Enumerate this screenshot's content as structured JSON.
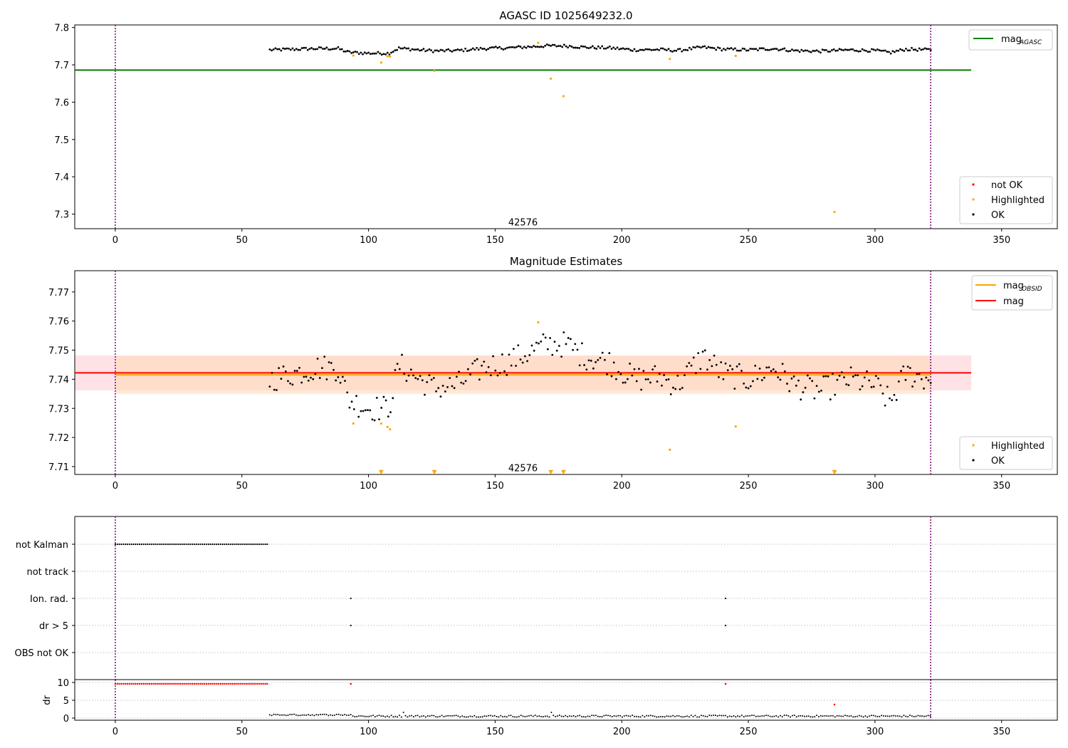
{
  "colors": {
    "ok": "#000000",
    "highlighted": "#ffa500",
    "not_ok": "#ff0000",
    "agasc_line": "#008000",
    "obsid_line": "#ffa500",
    "mag_line": "#ff0000",
    "obs_boundary": "#800080",
    "mag_band": "#ffb6c1",
    "obsid_band": "#ffdab9"
  },
  "chart_data": [
    {
      "type": "scatter",
      "title": "AGASC ID 1025649232.0",
      "xlabel": "",
      "ylabel": "",
      "xlim": [
        -16,
        372
      ],
      "ylim": [
        7.261,
        7.807
      ],
      "xticks": [
        0,
        50,
        100,
        150,
        200,
        250,
        300,
        350
      ],
      "yticks": [
        7.3,
        7.4,
        7.5,
        7.6,
        7.7,
        7.8
      ],
      "obs_boundaries": [
        0,
        322
      ],
      "obs_label": {
        "text": "42576",
        "x": 161,
        "y": 7.279
      },
      "hlines": [
        {
          "name": "mag_AGASC",
          "y": 7.686,
          "x": [
            -16,
            338
          ],
          "color_key": "agasc_line"
        }
      ],
      "series": [
        {
          "name": "Highlighted",
          "color_key": "highlighted",
          "x": [
            94,
            105,
            107.5,
            108.5,
            126,
            167,
            172,
            177,
            219,
            245,
            284
          ],
          "y": [
            7.725,
            7.706,
            7.723,
            7.722,
            7.684,
            7.759,
            7.663,
            7.616,
            7.716,
            7.724,
            7.306
          ]
        },
        {
          "name": "OK",
          "color_key": "ok",
          "line_profile": true,
          "x_range": [
            61,
            322
          ]
        },
        {
          "name": "not OK",
          "color_key": "not_ok",
          "x": [],
          "y": []
        }
      ],
      "legends": [
        {
          "position": "upper right",
          "entries": [
            {
              "label": "mag",
              "sub": "AGASC",
              "kind": "line",
              "color_key": "agasc_line"
            }
          ]
        },
        {
          "position": "lower right",
          "entries": [
            {
              "label": "not OK",
              "kind": "dot",
              "color_key": "not_ok"
            },
            {
              "label": "Highlighted",
              "kind": "dot",
              "color_key": "highlighted"
            },
            {
              "label": "OK",
              "kind": "dot",
              "color_key": "ok"
            }
          ]
        }
      ]
    },
    {
      "type": "scatter",
      "title": "Magnitude Estimates",
      "xlabel": "",
      "ylabel": "",
      "xlim": [
        -16,
        372
      ],
      "ylim": [
        7.7073,
        7.7773
      ],
      "xticks": [
        0,
        50,
        100,
        150,
        200,
        250,
        300,
        350
      ],
      "yticks": [
        7.71,
        7.72,
        7.73,
        7.74,
        7.75,
        7.76,
        7.77
      ],
      "obs_boundaries": [
        0,
        322
      ],
      "obs_label": {
        "text": "42576",
        "x": 161,
        "y": 7.7096
      },
      "bands": [
        {
          "x": [
            -16,
            338
          ],
          "y": [
            7.7362,
            7.7482
          ],
          "color_key": "mag_band",
          "opacity": 0.4
        },
        {
          "x": [
            0,
            322
          ],
          "y": [
            7.735,
            7.748
          ],
          "color_key": "obsid_band",
          "opacity": 0.6
        }
      ],
      "hlines": [
        {
          "name": "mag_OBSID",
          "y": 7.7415,
          "x": [
            0,
            322
          ],
          "color_key": "obsid_line"
        },
        {
          "name": "mag",
          "y": 7.7422,
          "x": [
            -16,
            338
          ],
          "color_key": "mag_line"
        }
      ],
      "series": [
        {
          "name": "OK",
          "color_key": "ok",
          "x_range": [
            61,
            322
          ]
        },
        {
          "name": "Highlighted",
          "color_key": "highlighted",
          "x": [
            94,
            105,
            107.5,
            108.5,
            167,
            219,
            245
          ],
          "y": [
            7.7248,
            7.7248,
            7.7236,
            7.7228,
            7.7596,
            7.7158,
            7.7238
          ]
        },
        {
          "name": "Highlighted (below range)",
          "marker": "triangle-down",
          "color_key": "highlighted",
          "x": [
            105,
            126,
            172,
            177,
            284
          ],
          "y": [
            7.7081,
            7.7081,
            7.7081,
            7.7081,
            7.7081
          ]
        }
      ],
      "legends": [
        {
          "position": "upper right",
          "entries": [
            {
              "label": "mag",
              "sub": "OBSID",
              "kind": "line",
              "color_key": "obsid_line"
            },
            {
              "label": "mag",
              "sub": "",
              "kind": "line",
              "color_key": "mag_line"
            }
          ]
        },
        {
          "position": "lower right",
          "entries": [
            {
              "label": "Highlighted",
              "kind": "dot",
              "color_key": "highlighted"
            },
            {
              "label": "OK",
              "kind": "dot",
              "color_key": "ok"
            }
          ]
        }
      ]
    },
    {
      "type": "scatter",
      "title": "",
      "xlabel": "",
      "ylabel": "",
      "xlim": [
        -16,
        372
      ],
      "categories": [
        "not Kalman",
        "not track",
        "Ion. rad.",
        "dr > 5",
        "OBS not OK"
      ],
      "obs_boundaries": [
        0,
        322
      ],
      "flags": [
        {
          "category": "not Kalman",
          "x_range": [
            0,
            60
          ]
        },
        {
          "category": "Ion. rad.",
          "x": [
            93,
            241
          ]
        },
        {
          "category": "dr > 5",
          "x": [
            93,
            241
          ]
        }
      ]
    },
    {
      "type": "scatter",
      "title": "",
      "xlabel": "",
      "ylabel": "dr",
      "xlim": [
        -16,
        372
      ],
      "ylim": [
        -0.6,
        10.8
      ],
      "xticks": [
        0,
        50,
        100,
        150,
        200,
        250,
        300,
        350
      ],
      "yticks": [
        0,
        5,
        10
      ],
      "obs_boundaries": [
        0,
        322
      ],
      "series": [
        {
          "name": "not OK",
          "color_key": "not_ok",
          "x_range": [
            0,
            60
          ],
          "y_value": 9.6
        },
        {
          "name": "not OK",
          "color_key": "not_ok",
          "x": [
            93,
            241,
            284
          ],
          "y": [
            9.6,
            9.6,
            3.8
          ]
        },
        {
          "name": "OK",
          "color_key": "ok",
          "x_range": [
            61,
            322
          ]
        }
      ]
    }
  ]
}
